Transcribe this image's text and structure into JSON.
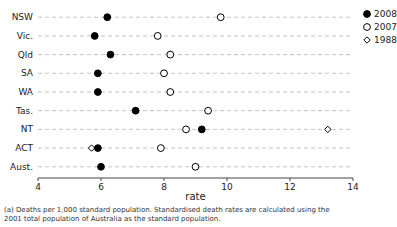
{
  "chart_data": {
    "type": "dot",
    "categories": [
      "NSW",
      "Vic.",
      "Qld",
      "SA",
      "WA",
      "Tas.",
      "NT",
      "ACT",
      "Aust."
    ],
    "series": [
      {
        "name": "2008",
        "color": "black",
        "marker": "circle",
        "values": [
          6.2,
          5.8,
          6.3,
          5.9,
          5.9,
          7.1,
          9.2,
          5.9,
          6.0
        ]
      },
      {
        "name": "2007",
        "color": "black",
        "marker": "circle-open",
        "values": [
          9.8,
          7.8,
          8.2,
          8.0,
          8.2,
          9.4,
          8.7,
          7.9,
          9.0
        ]
      },
      {
        "name": "1988",
        "color": "black",
        "marker": "diamond-open",
        "values": [
          9.8,
          7.8,
          8.2,
          8.0,
          8.2,
          9.4,
          13.2,
          5.7,
          9.0
        ]
      }
    ],
    "xlim": [
      4,
      14
    ],
    "xticks": [
      4,
      6,
      8,
      10,
      12,
      14
    ],
    "xlabel": "rate",
    "annotations": [
      "(a) Deaths per 1,000 standard population. Standardised death rates are calculated using the\n2001 total population of Australia as the standard population."
    ],
    "grid": true,
    "legend": "upper right"
  }
}
